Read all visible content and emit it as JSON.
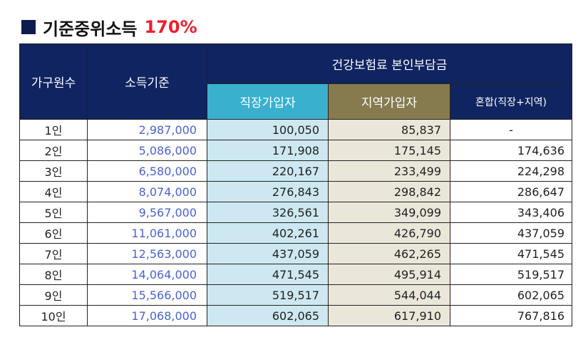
{
  "colors": {
    "header_dark": "#0f2460",
    "header_blue": "#3ab0cf",
    "header_olive": "#857b4f",
    "col_blue_bg": "#cde8f0",
    "col_olive_bg": "#ebe6da",
    "income_text": "#4a63cf",
    "title_accent": "#e8222e",
    "title_square": "#0c1c4f"
  },
  "title": {
    "main": "기준중위소득",
    "percent": "170%"
  },
  "table": {
    "header": {
      "household": "가구원수",
      "income": "소득기준",
      "premium": "건강보험료 본인부담금",
      "sub": [
        "직장가입자",
        "지역가입자",
        "혼합(직장+지역)"
      ]
    },
    "rows": [
      {
        "household": "1인",
        "income": "2,987,000",
        "workplace": "100,050",
        "regional": "85,837",
        "mixed": "-"
      },
      {
        "household": "2인",
        "income": "5,086,000",
        "workplace": "171,908",
        "regional": "175,145",
        "mixed": "174,636"
      },
      {
        "household": "3인",
        "income": "6,580,000",
        "workplace": "220,167",
        "regional": "233,499",
        "mixed": "224,298"
      },
      {
        "household": "4인",
        "income": "8,074,000",
        "workplace": "276,843",
        "regional": "298,842",
        "mixed": "286,647"
      },
      {
        "household": "5인",
        "income": "9,567,000",
        "workplace": "326,561",
        "regional": "349,099",
        "mixed": "343,406"
      },
      {
        "household": "6인",
        "income": "11,061,000",
        "workplace": "402,261",
        "regional": "426,790",
        "mixed": "437,059"
      },
      {
        "household": "7인",
        "income": "12,563,000",
        "workplace": "437,059",
        "regional": "462,265",
        "mixed": "471,545"
      },
      {
        "household": "8인",
        "income": "14,064,000",
        "workplace": "471,545",
        "regional": "495,914",
        "mixed": "519,517"
      },
      {
        "household": "9인",
        "income": "15,566,000",
        "workplace": "519,517",
        "regional": "544,044",
        "mixed": "602,065"
      },
      {
        "household": "10인",
        "income": "17,068,000",
        "workplace": "602,065",
        "regional": "617,910",
        "mixed": "767,816"
      }
    ]
  }
}
